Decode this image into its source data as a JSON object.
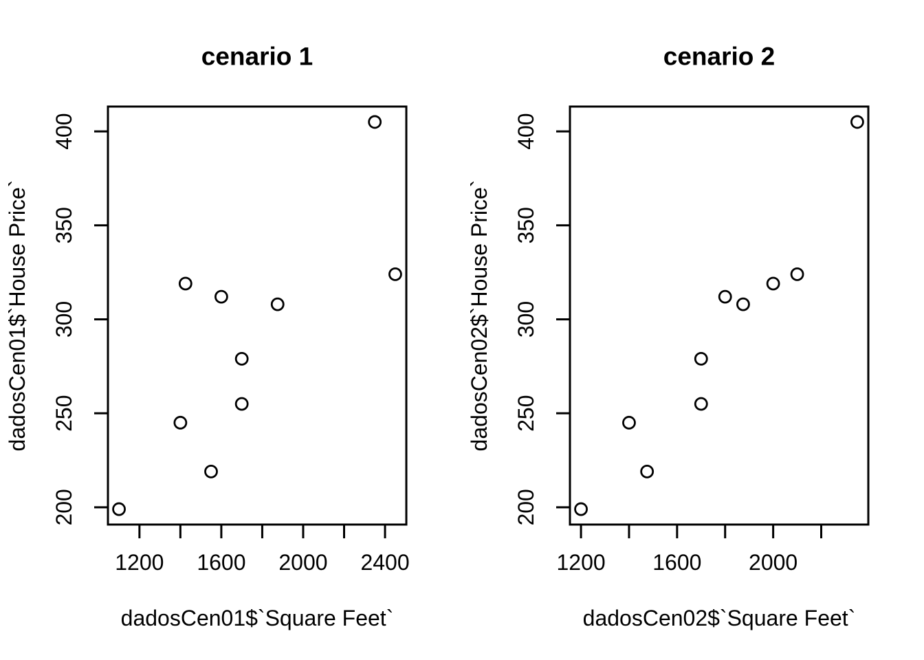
{
  "figure": {
    "background": "#ffffff",
    "foreground": "#000000",
    "point_style": "open-circle"
  },
  "chart_data": [
    {
      "type": "scatter",
      "title": "cenario 1",
      "xlabel": "dadosCen01$`Square Feet`",
      "ylabel": "dadosCen01$`House Price`",
      "points": [
        [
          1400,
          245
        ],
        [
          1600,
          312
        ],
        [
          1700,
          279
        ],
        [
          1875,
          308
        ],
        [
          1100,
          199
        ],
        [
          1550,
          219
        ],
        [
          2350,
          405
        ],
        [
          2450,
          324
        ],
        [
          1425,
          319
        ],
        [
          1700,
          255
        ]
      ],
      "x_ticks": [
        1200,
        1400,
        1600,
        1800,
        2000,
        2200,
        2400
      ],
      "x_tick_labels": [
        1200,
        1600,
        2000,
        2400
      ],
      "y_ticks": [
        200,
        250,
        300,
        350,
        400
      ],
      "y_tick_labels": [
        200,
        250,
        300,
        350,
        400
      ],
      "xlim": [
        1046,
        2504
      ],
      "ylim": [
        190.8,
        413.2
      ],
      "grid": false,
      "legend": null
    },
    {
      "type": "scatter",
      "title": "cenario 2",
      "xlabel": "dadosCen02$`Square Feet`",
      "ylabel": "dadosCen02$`House Price`",
      "points": [
        [
          1200,
          199
        ],
        [
          1400,
          245
        ],
        [
          1475,
          219
        ],
        [
          1700,
          255
        ],
        [
          1700,
          279
        ],
        [
          1800,
          312
        ],
        [
          1875,
          308
        ],
        [
          2000,
          319
        ],
        [
          2100,
          324
        ],
        [
          2350,
          405
        ]
      ],
      "x_ticks": [
        1200,
        1400,
        1600,
        1800,
        2000,
        2200
      ],
      "x_tick_labels": [
        1200,
        1600,
        2000
      ],
      "y_ticks": [
        200,
        250,
        300,
        350,
        400
      ],
      "y_tick_labels": [
        200,
        250,
        300,
        350,
        400
      ],
      "xlim": [
        1154,
        2396
      ],
      "ylim": [
        190.8,
        413.2
      ],
      "grid": false,
      "legend": null
    }
  ]
}
